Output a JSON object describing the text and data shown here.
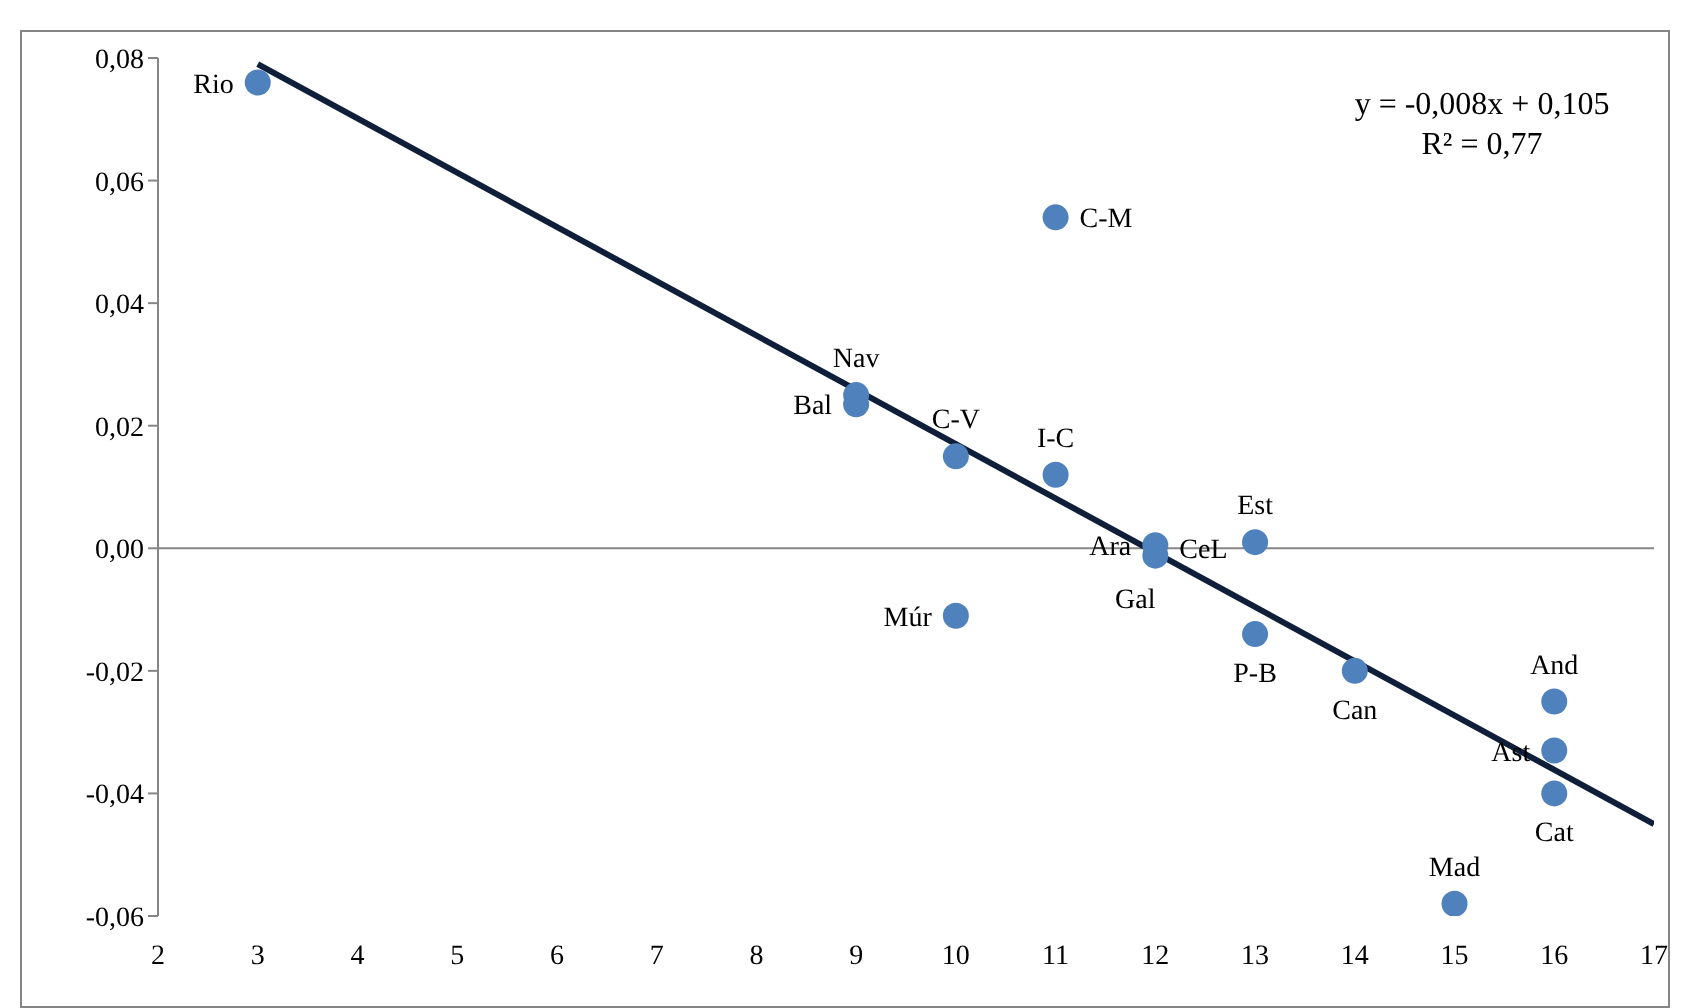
{
  "chart_data": {
    "type": "scatter",
    "xlim": [
      2,
      17
    ],
    "xticks": [
      2,
      3,
      4,
      5,
      6,
      7,
      8,
      9,
      10,
      11,
      12,
      13,
      14,
      15,
      16,
      17
    ],
    "ylim": [
      -0.06,
      0.08
    ],
    "yticks": [
      {
        "value": -0.06,
        "label": "-0,06"
      },
      {
        "value": -0.04,
        "label": "-0,04"
      },
      {
        "value": -0.02,
        "label": "-0,02"
      },
      {
        "value": 0,
        "label": "0,00"
      },
      {
        "value": 0.02,
        "label": "0,02"
      },
      {
        "value": 0.04,
        "label": "0,04"
      },
      {
        "value": 0.06,
        "label": "0,06"
      },
      {
        "value": 0.08,
        "label": "0,08"
      }
    ],
    "marker": "circle",
    "ref_lines": [
      {
        "axis": "y",
        "value": 0,
        "color": "#868686"
      }
    ],
    "annotations": [
      "y = -0,008x + 0,105",
      "R² = 0,77",
      {
        "text": "CeL",
        "x": 12,
        "y": 0
      }
    ],
    "series": [
      {
        "color": "#4f81bd",
        "x": [
          3,
          9,
          9,
          10,
          11,
          11,
          10,
          12,
          12,
          13,
          13,
          14,
          16,
          16,
          16,
          15
        ],
        "values": [
          0.076,
          0.025,
          0.0235,
          0.015,
          0.054,
          0.012,
          -0.011,
          0.0005,
          -0.0012,
          0.001,
          -0.014,
          -0.02,
          -0.025,
          -0.033,
          -0.04,
          -0.058
        ],
        "value_labels": [
          "Rio",
          "Nav",
          "Bal",
          "C-V",
          "C-M",
          "I-C",
          "Múr",
          "Ara",
          "Gal",
          "Est",
          "P-B",
          "Can",
          "And",
          "Ast",
          "Cat",
          "Mad"
        ]
      },
      {
        "type": "line",
        "color": "#0f1f3a",
        "line_style": "solid",
        "marker": "none",
        "x": [
          3,
          17
        ],
        "values": [
          0.079,
          -0.045
        ]
      }
    ]
  }
}
